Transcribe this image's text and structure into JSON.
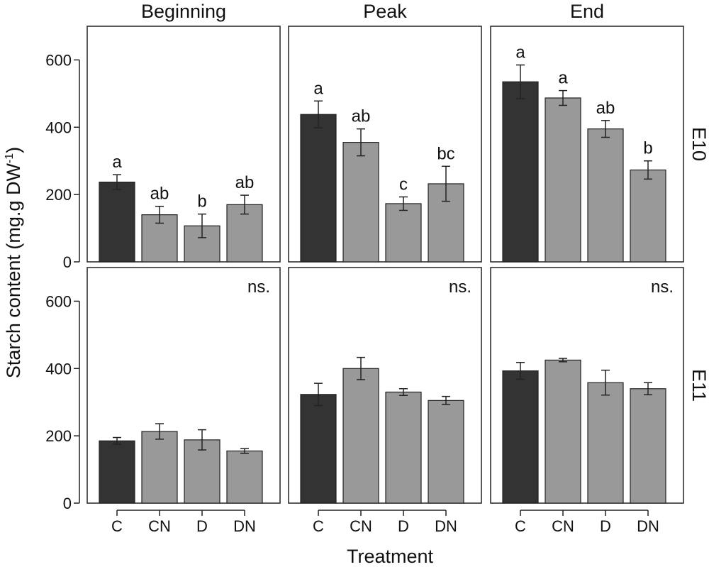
{
  "chart_data": {
    "type": "bar",
    "title": "",
    "xlabel": "Treatment",
    "ylabel": "Starch content (mg.g DW",
    "ylabel_superscript": "-1",
    "ylabel_suffix": ")",
    "ylim": [
      0,
      700
    ],
    "yticks": [
      0,
      200,
      400,
      600
    ],
    "categories": [
      "C",
      "CN",
      "D",
      "DN"
    ],
    "columns": [
      "Beginning",
      "Peak",
      "End"
    ],
    "rows": [
      "E10",
      "E11"
    ],
    "colors": {
      "C": "#333333",
      "CN": "#999999",
      "D": "#999999",
      "DN": "#999999"
    },
    "panels": [
      {
        "row": "E10",
        "column": "Beginning",
        "values": [
          237,
          140,
          107,
          170
        ],
        "errors": [
          22,
          25,
          35,
          28
        ],
        "labels": [
          "a",
          "ab",
          "b",
          "ab"
        ],
        "annotation": ""
      },
      {
        "row": "E10",
        "column": "Peak",
        "values": [
          438,
          355,
          173,
          232
        ],
        "errors": [
          40,
          40,
          20,
          52
        ],
        "labels": [
          "a",
          "ab",
          "c",
          "bc"
        ],
        "annotation": ""
      },
      {
        "row": "E10",
        "column": "End",
        "values": [
          535,
          487,
          395,
          273
        ],
        "errors": [
          50,
          22,
          25,
          27
        ],
        "labels": [
          "a",
          "a",
          "ab",
          "b"
        ],
        "annotation": ""
      },
      {
        "row": "E11",
        "column": "Beginning",
        "values": [
          185,
          213,
          188,
          155
        ],
        "errors": [
          10,
          23,
          30,
          7
        ],
        "labels": [
          "",
          "",
          "",
          ""
        ],
        "annotation": "ns."
      },
      {
        "row": "E11",
        "column": "Peak",
        "values": [
          323,
          400,
          330,
          305
        ],
        "errors": [
          33,
          33,
          10,
          12
        ],
        "labels": [
          "",
          "",
          "",
          ""
        ],
        "annotation": "ns."
      },
      {
        "row": "E11",
        "column": "End",
        "values": [
          393,
          425,
          358,
          340
        ],
        "errors": [
          25,
          5,
          37,
          18
        ],
        "labels": [
          "",
          "",
          "",
          ""
        ],
        "annotation": "ns."
      }
    ]
  }
}
